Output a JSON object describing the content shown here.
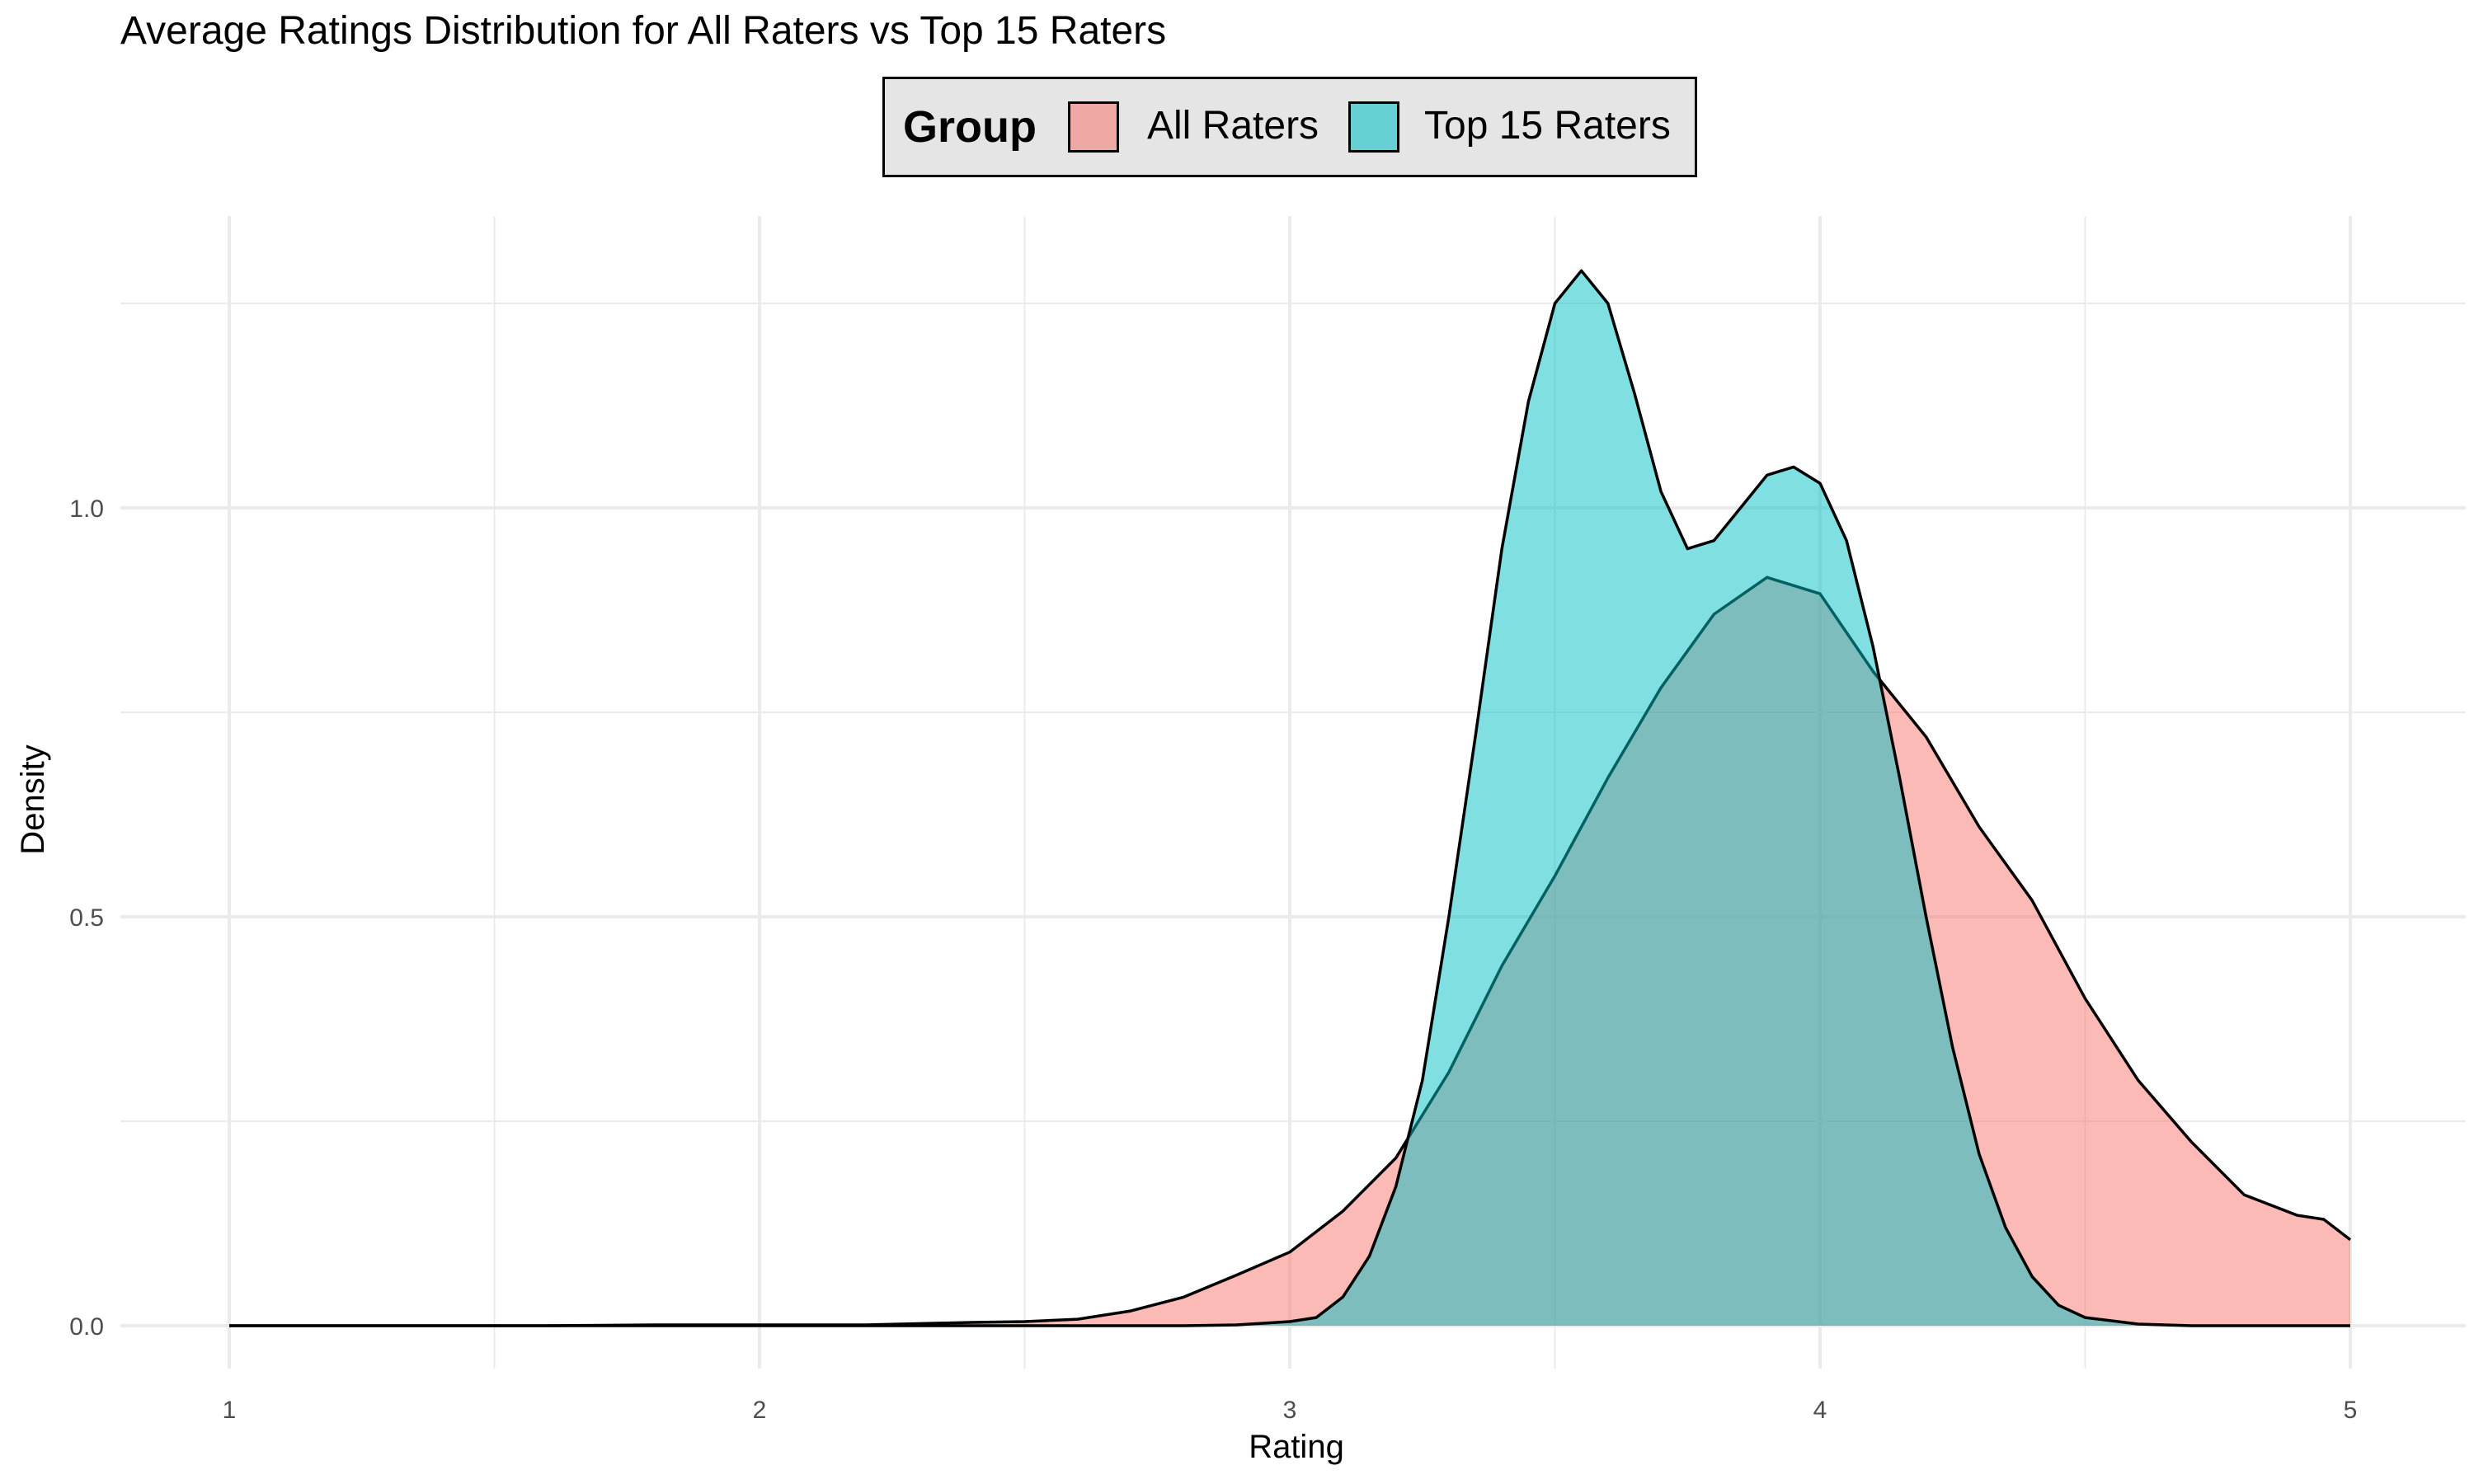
{
  "chart_data": {
    "type": "area",
    "title": "Average Ratings Distribution for All Raters vs Top 15 Raters",
    "xlabel": "Rating",
    "ylabel": "Density",
    "xlim": [
      0.8,
      5.2
    ],
    "ylim": [
      -0.06,
      1.3
    ],
    "x_ticks": [
      {
        "value": 1,
        "label": "1"
      },
      {
        "value": 2,
        "label": "2"
      },
      {
        "value": 3,
        "label": "3"
      },
      {
        "value": 4,
        "label": "4"
      },
      {
        "value": 5,
        "label": "5"
      }
    ],
    "y_ticks": [
      {
        "value": 0,
        "label": "0.0"
      },
      {
        "value": 0.5,
        "label": "0.5"
      },
      {
        "value": 1.0,
        "label": "1.0"
      }
    ],
    "x_minor_grid": [
      1.5,
      2.5,
      3.5,
      4.5
    ],
    "y_minor_grid": [
      0.25,
      0.75,
      1.25
    ],
    "grid": true,
    "legend": {
      "title": "Group",
      "position": "top",
      "entries": [
        {
          "label": "All Raters",
          "color": "#f8766d"
        },
        {
          "label": "Top 15 Raters",
          "color": "#00bfc4"
        }
      ]
    },
    "series": [
      {
        "name": "All Raters",
        "color": "#f8766d",
        "opacity": 0.5,
        "points": [
          [
            1.0,
            0.0
          ],
          [
            1.2,
            0.0
          ],
          [
            1.4,
            0.0
          ],
          [
            1.6,
            0.0
          ],
          [
            1.8,
            0.001
          ],
          [
            2.0,
            0.001
          ],
          [
            2.2,
            0.001
          ],
          [
            2.4,
            0.004
          ],
          [
            2.5,
            0.005
          ],
          [
            2.6,
            0.008
          ],
          [
            2.7,
            0.018
          ],
          [
            2.8,
            0.035
          ],
          [
            2.9,
            0.062
          ],
          [
            3.0,
            0.09
          ],
          [
            3.1,
            0.14
          ],
          [
            3.2,
            0.205
          ],
          [
            3.3,
            0.31
          ],
          [
            3.4,
            0.44
          ],
          [
            3.5,
            0.55
          ],
          [
            3.6,
            0.67
          ],
          [
            3.7,
            0.78
          ],
          [
            3.8,
            0.87
          ],
          [
            3.9,
            0.915
          ],
          [
            4.0,
            0.895
          ],
          [
            4.1,
            0.8
          ],
          [
            4.2,
            0.72
          ],
          [
            4.3,
            0.61
          ],
          [
            4.4,
            0.52
          ],
          [
            4.5,
            0.4
          ],
          [
            4.6,
            0.3
          ],
          [
            4.7,
            0.225
          ],
          [
            4.8,
            0.16
          ],
          [
            4.9,
            0.135
          ],
          [
            4.95,
            0.13
          ],
          [
            5.0,
            0.105
          ]
        ]
      },
      {
        "name": "Top 15 Raters",
        "color": "#00bfc4",
        "opacity": 0.5,
        "points": [
          [
            1.0,
            0.0
          ],
          [
            1.5,
            0.0
          ],
          [
            2.0,
            0.0
          ],
          [
            2.5,
            0.0
          ],
          [
            2.8,
            0.0
          ],
          [
            2.9,
            0.001
          ],
          [
            3.0,
            0.005
          ],
          [
            3.05,
            0.01
          ],
          [
            3.1,
            0.035
          ],
          [
            3.15,
            0.085
          ],
          [
            3.2,
            0.17
          ],
          [
            3.25,
            0.3
          ],
          [
            3.3,
            0.5
          ],
          [
            3.35,
            0.72
          ],
          [
            3.4,
            0.95
          ],
          [
            3.45,
            1.13
          ],
          [
            3.5,
            1.25
          ],
          [
            3.55,
            1.29
          ],
          [
            3.6,
            1.25
          ],
          [
            3.65,
            1.14
          ],
          [
            3.7,
            1.02
          ],
          [
            3.75,
            0.95
          ],
          [
            3.8,
            0.96
          ],
          [
            3.85,
            1.0
          ],
          [
            3.9,
            1.04
          ],
          [
            3.95,
            1.05
          ],
          [
            4.0,
            1.03
          ],
          [
            4.05,
            0.96
          ],
          [
            4.1,
            0.83
          ],
          [
            4.15,
            0.67
          ],
          [
            4.2,
            0.5
          ],
          [
            4.25,
            0.34
          ],
          [
            4.3,
            0.21
          ],
          [
            4.35,
            0.12
          ],
          [
            4.4,
            0.06
          ],
          [
            4.45,
            0.025
          ],
          [
            4.5,
            0.01
          ],
          [
            4.6,
            0.002
          ],
          [
            4.7,
            0.0
          ],
          [
            5.0,
            0.0
          ]
        ]
      }
    ]
  }
}
